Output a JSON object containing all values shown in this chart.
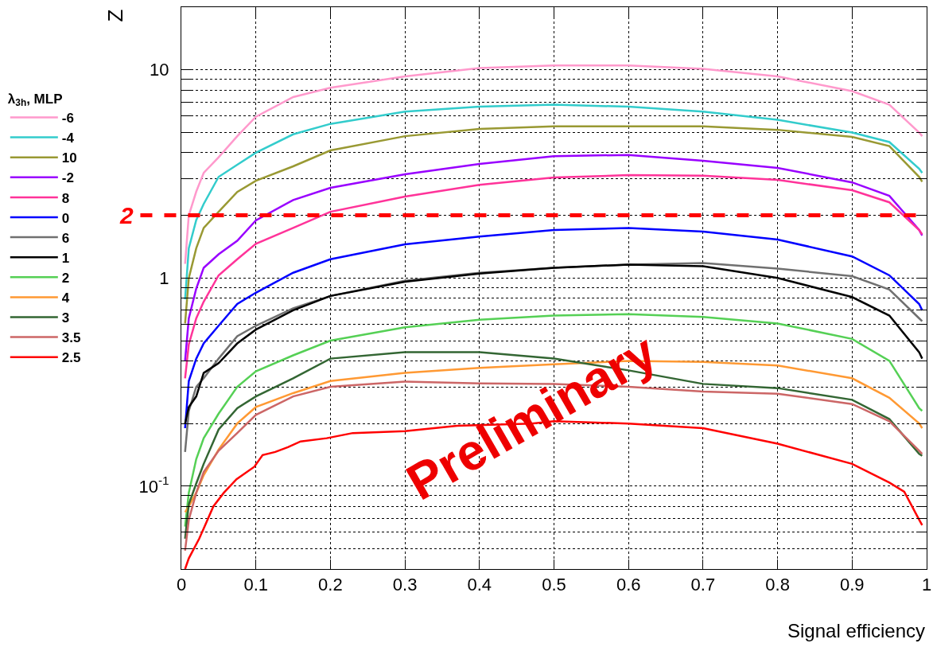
{
  "chart_data": {
    "type": "line",
    "xlabel": "Signal efficiency",
    "ylabel": "Z",
    "legend_title": "λ$_{3h}$, MLP",
    "x": [
      0.005,
      0.01,
      0.02,
      0.03,
      0.05,
      0.075,
      0.1,
      0.15,
      0.2,
      0.3,
      0.4,
      0.5,
      0.6,
      0.7,
      0.8,
      0.9,
      0.95,
      0.99,
      0.994
    ],
    "series": [
      {
        "name": "-6",
        "color": "#ff99cc",
        "values": [
          1.17,
          2.0,
          2.6,
          3.2,
          3.8,
          4.8,
          5.95,
          7.4,
          8.2,
          9.3,
          10.2,
          10.5,
          10.5,
          10.1,
          9.3,
          7.9,
          6.8,
          5.0,
          4.8
        ]
      },
      {
        "name": "-4",
        "color": "#33cccc",
        "values": [
          0.79,
          1.39,
          1.9,
          2.27,
          3.06,
          3.5,
          4.0,
          4.9,
          5.5,
          6.3,
          6.65,
          6.8,
          6.65,
          6.3,
          5.75,
          5.0,
          4.5,
          3.35,
          3.2
        ]
      },
      {
        "name": "10",
        "color": "#999933",
        "values": [
          0.605,
          1.0,
          1.39,
          1.74,
          2.08,
          2.59,
          2.93,
          3.44,
          4.1,
          4.8,
          5.2,
          5.35,
          5.35,
          5.35,
          5.15,
          4.76,
          4.3,
          3.06,
          2.9
        ]
      },
      {
        "name": "-2",
        "color": "#9900ff",
        "values": [
          0.4,
          0.64,
          0.89,
          1.12,
          1.3,
          1.51,
          1.89,
          2.37,
          2.71,
          3.15,
          3.53,
          3.85,
          3.9,
          3.66,
          3.38,
          2.88,
          2.48,
          1.7,
          1.6
        ]
      },
      {
        "name": "8",
        "color": "#ff3399",
        "values": [
          0.33,
          0.48,
          0.64,
          0.77,
          1.03,
          1.23,
          1.46,
          1.74,
          2.08,
          2.46,
          2.8,
          3.04,
          3.12,
          3.1,
          2.96,
          2.64,
          2.31,
          1.7,
          1.62
        ]
      },
      {
        "name": "0",
        "color": "#0000ff",
        "values": [
          0.19,
          0.32,
          0.41,
          0.485,
          0.59,
          0.75,
          0.85,
          1.06,
          1.23,
          1.45,
          1.58,
          1.7,
          1.74,
          1.67,
          1.53,
          1.27,
          1.03,
          0.75,
          0.7
        ]
      },
      {
        "name": "6",
        "color": "#707070",
        "values": [
          0.146,
          0.23,
          0.3,
          0.33,
          0.41,
          0.525,
          0.59,
          0.715,
          0.82,
          0.97,
          1.06,
          1.12,
          1.16,
          1.18,
          1.11,
          1.02,
          0.88,
          0.64,
          0.62
        ]
      },
      {
        "name": "1",
        "color": "#000000",
        "values": [
          0.2,
          0.24,
          0.27,
          0.35,
          0.39,
          0.485,
          0.565,
          0.7,
          0.82,
          0.96,
          1.05,
          1.12,
          1.16,
          1.14,
          1.0,
          0.81,
          0.66,
          0.44,
          0.41
        ]
      },
      {
        "name": "2",
        "color": "#55d055",
        "values": [
          0.064,
          0.093,
          0.135,
          0.17,
          0.223,
          0.3,
          0.356,
          0.425,
          0.5,
          0.58,
          0.63,
          0.66,
          0.67,
          0.65,
          0.605,
          0.51,
          0.4,
          0.237,
          0.23
        ]
      },
      {
        "name": "4",
        "color": "#ff9933",
        "values": [
          0.075,
          0.08,
          0.093,
          0.113,
          0.15,
          0.2,
          0.24,
          0.28,
          0.32,
          0.35,
          0.37,
          0.385,
          0.4,
          0.395,
          0.38,
          0.33,
          0.266,
          0.2,
          0.19
        ]
      },
      {
        "name": "3",
        "color": "#336633",
        "values": [
          0.056,
          0.082,
          0.103,
          0.128,
          0.187,
          0.237,
          0.27,
          0.33,
          0.41,
          0.44,
          0.44,
          0.41,
          0.36,
          0.31,
          0.296,
          0.26,
          0.21,
          0.143,
          0.14
        ]
      },
      {
        "name": "3.5",
        "color": "#cc6666",
        "values": [
          0.049,
          0.069,
          0.093,
          0.117,
          0.148,
          0.18,
          0.22,
          0.27,
          0.3,
          0.318,
          0.312,
          0.31,
          0.3,
          0.285,
          0.278,
          0.248,
          0.205,
          0.148,
          0.143
        ]
      },
      {
        "name": "2.5",
        "color": "#ff0000",
        "x": [
          0.005,
          0.01,
          0.024,
          0.043,
          0.057,
          0.074,
          0.098,
          0.109,
          0.126,
          0.143,
          0.16,
          0.195,
          0.23,
          0.3,
          0.37,
          0.47,
          0.5,
          0.6,
          0.7,
          0.8,
          0.9,
          0.95,
          0.97,
          0.99,
          0.994
        ],
        "values": [
          0.04,
          0.045,
          0.056,
          0.08,
          0.093,
          0.108,
          0.124,
          0.141,
          0.146,
          0.154,
          0.164,
          0.17,
          0.18,
          0.184,
          0.195,
          0.2,
          0.205,
          0.2,
          0.19,
          0.16,
          0.128,
          0.104,
          0.094,
          0.069,
          0.065
        ]
      }
    ],
    "ref_lines": [
      {
        "axis": "y",
        "value": 2,
        "label": "2",
        "color": "#ff0000",
        "line_style": "dashed"
      }
    ],
    "annotations": [
      "Preliminary"
    ],
    "log": "y",
    "xlim": [
      0,
      1
    ],
    "xticks": [
      0,
      0.1,
      0.2,
      0.3,
      0.4,
      0.5,
      0.6,
      0.7,
      0.8,
      0.9,
      1
    ],
    "ylim": [
      0.04,
      20
    ],
    "yticks": [
      {
        "value": 0.04,
        "label": null
      },
      {
        "value": 0.05,
        "label": null
      },
      {
        "value": 0.06,
        "label": null
      },
      {
        "value": 0.07,
        "label": null
      },
      {
        "value": 0.08,
        "label": null
      },
      {
        "value": 0.09,
        "label": null
      },
      {
        "value": 0.1,
        "label": "10$^{-1}$"
      },
      {
        "value": 0.2,
        "label": null
      },
      {
        "value": 0.3,
        "label": null
      },
      {
        "value": 0.4,
        "label": null
      },
      {
        "value": 0.5,
        "label": null
      },
      {
        "value": 0.6,
        "label": null
      },
      {
        "value": 0.7,
        "label": null
      },
      {
        "value": 0.8,
        "label": null
      },
      {
        "value": 0.9,
        "label": null
      },
      1,
      {
        "value": 2,
        "label": null
      },
      {
        "value": 3,
        "label": null
      },
      {
        "value": 4,
        "label": null
      },
      {
        "value": 5,
        "label": null
      },
      {
        "value": 6,
        "label": null
      },
      {
        "value": 7,
        "label": null
      },
      {
        "value": 8,
        "label": null
      },
      {
        "value": 9,
        "label": null
      },
      10,
      {
        "value": 20,
        "label": null
      }
    ],
    "grid": true,
    "legend": "left",
    "marker": "none",
    "line_style": "solid"
  }
}
